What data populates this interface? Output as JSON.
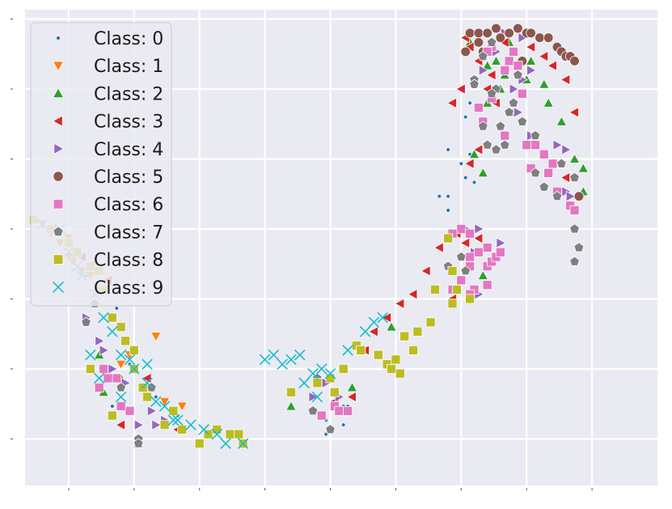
{
  "chart_data": {
    "type": "scatter",
    "title": "",
    "xlabel": "",
    "ylabel": "",
    "xlim": [
      -80,
      65
    ],
    "ylim": [
      -60,
      42
    ],
    "grid": true,
    "legend_position": "top-left",
    "colors": [
      "#1f77b4",
      "#ff7f0e",
      "#2ca02c",
      "#d62728",
      "#9467bd",
      "#8c564b",
      "#e377c2",
      "#7f7f7f",
      "#bcbd22",
      "#17becf"
    ],
    "markers": [
      "point",
      "triangle-down",
      "triangle-up",
      "triangle-left",
      "triangle-right",
      "circle",
      "square",
      "pentagon",
      "square",
      "x"
    ],
    "series": [
      {
        "name": "Class: 0",
        "points": [
          [
            22,
            22
          ],
          [
            21,
            19
          ],
          [
            17,
            12
          ],
          [
            20,
            9
          ],
          [
            22,
            11
          ],
          [
            17,
            2
          ],
          [
            23,
            5
          ],
          [
            -11,
            -46
          ],
          [
            -7,
            -47
          ],
          [
            -11,
            -49
          ],
          [
            -7,
            -43
          ],
          [
            -6,
            -43
          ],
          [
            21,
            6
          ],
          [
            15,
            2
          ],
          [
            17,
            -1
          ],
          [
            -45,
            -45
          ],
          [
            -50,
            -41
          ],
          [
            -56,
            -34
          ],
          [
            -66,
            -15
          ],
          [
            -59,
            -22
          ],
          [
            -60,
            -43
          ],
          [
            -44,
            -48
          ]
        ]
      },
      {
        "name": "Class: 1",
        "points": [
          [
            -76,
            -4
          ],
          [
            -74,
            -6
          ],
          [
            -72,
            -8
          ],
          [
            -70,
            -7
          ],
          [
            -69,
            -12
          ],
          [
            -67,
            -14
          ],
          [
            -65,
            -15
          ],
          [
            -63,
            -18
          ],
          [
            -52,
            -39
          ],
          [
            -48,
            -42
          ],
          [
            -44,
            -43
          ],
          [
            -56,
            -32
          ],
          [
            -58,
            -34
          ],
          [
            -50,
            -28
          ],
          [
            -70,
            -11
          ]
        ]
      },
      {
        "name": "Class: 2",
        "points": [
          [
            30,
            28
          ],
          [
            35,
            27
          ],
          [
            40,
            22
          ],
          [
            43,
            18
          ],
          [
            46,
            10
          ],
          [
            48,
            8
          ],
          [
            48,
            3
          ],
          [
            46,
            -1
          ],
          [
            39,
            26
          ],
          [
            32,
            20
          ],
          [
            26,
            22
          ],
          [
            28,
            31
          ],
          [
            22,
            35
          ],
          [
            31,
            35
          ],
          [
            36,
            31
          ],
          [
            26,
            30
          ],
          [
            29,
            25
          ],
          [
            23,
            11
          ],
          [
            25,
            7
          ],
          [
            25,
            -15
          ],
          [
            -19,
            -43
          ],
          [
            -5,
            -39
          ],
          [
            4,
            -26
          ],
          [
            -54,
            -51
          ],
          [
            -63,
            -32
          ],
          [
            -62,
            -40
          ],
          [
            -58,
            -37
          ]
        ]
      },
      {
        "name": "Class: 3",
        "points": [
          [
            21,
            36
          ],
          [
            22,
            34
          ],
          [
            24,
            31
          ],
          [
            27,
            28
          ],
          [
            26,
            25
          ],
          [
            28,
            22
          ],
          [
            36,
            34
          ],
          [
            39,
            32
          ],
          [
            41,
            30
          ],
          [
            44,
            27
          ],
          [
            46,
            20
          ],
          [
            44,
            6
          ],
          [
            20,
            25
          ],
          [
            18,
            22
          ],
          [
            19,
            -6
          ],
          [
            21,
            -8
          ],
          [
            20,
            -16
          ],
          [
            18,
            -20
          ],
          [
            24,
            -7
          ],
          [
            15,
            -9
          ],
          [
            12,
            -14
          ],
          [
            9,
            -19
          ],
          [
            6,
            -21
          ],
          [
            3,
            -24
          ],
          [
            0,
            -27
          ],
          [
            -2,
            -31
          ],
          [
            24,
            12
          ],
          [
            22,
            9
          ],
          [
            30,
            35
          ],
          [
            -9,
            -42
          ],
          [
            -5,
            -41
          ],
          [
            -58,
            -47
          ],
          [
            -52,
            -37
          ],
          [
            -45,
            -48
          ],
          [
            -61,
            -16
          ],
          [
            -67,
            -11
          ]
        ]
      },
      {
        "name": "Class: 4",
        "points": [
          [
            30,
            37
          ],
          [
            34,
            36
          ],
          [
            28,
            33
          ],
          [
            25,
            29
          ],
          [
            36,
            29
          ],
          [
            34,
            27
          ],
          [
            32,
            25
          ],
          [
            33,
            20
          ],
          [
            36,
            15
          ],
          [
            42,
            13
          ],
          [
            44,
            12
          ],
          [
            44,
            3
          ],
          [
            45,
            2
          ],
          [
            24,
            -5
          ],
          [
            21,
            -5
          ],
          [
            29,
            -8
          ],
          [
            23,
            -10
          ],
          [
            24,
            -19
          ],
          [
            -14,
            -41
          ],
          [
            -11,
            -38
          ],
          [
            -8,
            -41
          ],
          [
            -54,
            -47
          ],
          [
            -50,
            -47
          ],
          [
            -60,
            -35
          ],
          [
            -63,
            -29
          ],
          [
            -62,
            -31
          ],
          [
            -51,
            -44
          ],
          [
            -48,
            -46
          ],
          [
            -57,
            -38
          ],
          [
            -66,
            -24
          ]
        ]
      },
      {
        "name": "Class: 5",
        "points": [
          [
            22,
            37
          ],
          [
            24,
            37
          ],
          [
            26,
            37
          ],
          [
            28,
            38
          ],
          [
            31,
            37
          ],
          [
            33,
            38
          ],
          [
            35,
            37
          ],
          [
            36,
            37
          ],
          [
            38,
            36
          ],
          [
            40,
            36
          ],
          [
            42,
            34
          ],
          [
            43,
            33
          ],
          [
            44,
            32
          ],
          [
            45,
            32
          ],
          [
            46,
            31
          ],
          [
            21,
            33
          ],
          [
            24,
            35
          ],
          [
            25,
            33
          ],
          [
            29,
            36
          ],
          [
            32,
            33
          ],
          [
            34,
            31
          ],
          [
            47,
            2
          ]
        ]
      },
      {
        "name": "Class: 6",
        "points": [
          [
            27,
            34
          ],
          [
            26,
            33
          ],
          [
            31,
            31
          ],
          [
            30,
            29
          ],
          [
            32,
            33
          ],
          [
            33,
            30
          ],
          [
            34,
            24
          ],
          [
            27,
            23
          ],
          [
            24,
            21
          ],
          [
            25,
            18
          ],
          [
            30,
            15
          ],
          [
            35,
            13
          ],
          [
            37,
            13
          ],
          [
            39,
            11
          ],
          [
            36,
            8
          ],
          [
            41,
            9
          ],
          [
            40,
            7
          ],
          [
            42,
            3
          ],
          [
            45,
            0
          ],
          [
            46,
            -1
          ],
          [
            20,
            -5
          ],
          [
            18,
            -6
          ],
          [
            22,
            -6
          ],
          [
            26,
            -9
          ],
          [
            24,
            -10
          ],
          [
            26,
            -13
          ],
          [
            27,
            -12
          ],
          [
            28,
            -11
          ],
          [
            29,
            -10
          ],
          [
            22,
            -11
          ],
          [
            22,
            -13
          ],
          [
            20,
            -16
          ],
          [
            18,
            -18
          ],
          [
            23,
            -18
          ],
          [
            26,
            -17
          ],
          [
            22,
            -19
          ],
          [
            -9,
            -43
          ],
          [
            -8,
            -44
          ],
          [
            -6,
            -44
          ],
          [
            -12,
            -45
          ],
          [
            -56,
            -44
          ],
          [
            -58,
            -43
          ],
          [
            -59,
            -37
          ],
          [
            -62,
            -35
          ],
          [
            -61,
            -37
          ],
          [
            -63,
            -39
          ]
        ]
      },
      {
        "name": "Class: 7",
        "points": [
          [
            27,
            35
          ],
          [
            25,
            32
          ],
          [
            23,
            27
          ],
          [
            23,
            26
          ],
          [
            28,
            25
          ],
          [
            27,
            24
          ],
          [
            33,
            28
          ],
          [
            32,
            22
          ],
          [
            31,
            20
          ],
          [
            34,
            18
          ],
          [
            29,
            17
          ],
          [
            25,
            17
          ],
          [
            26,
            13
          ],
          [
            30,
            13
          ],
          [
            39,
            4
          ],
          [
            42,
            2
          ],
          [
            37,
            7
          ],
          [
            43,
            9
          ],
          [
            46,
            6
          ],
          [
            46,
            -5
          ],
          [
            47,
            -9
          ],
          [
            46,
            -12
          ],
          [
            37,
            15
          ],
          [
            28,
            12
          ],
          [
            20,
            -11
          ],
          [
            21,
            -14
          ],
          [
            17,
            -13
          ],
          [
            -10,
            -48
          ],
          [
            -14,
            -44
          ],
          [
            -13,
            -37
          ],
          [
            -51,
            -39
          ],
          [
            -54,
            -50
          ],
          [
            -54,
            -51
          ],
          [
            -58,
            -39
          ],
          [
            -64,
            -21
          ],
          [
            -66,
            -25
          ]
        ]
      },
      {
        "name": "Class: 8",
        "points": [
          [
            -78,
            -3
          ],
          [
            -74,
            -5
          ],
          [
            -70,
            -8
          ],
          [
            -68,
            -10
          ],
          [
            -65,
            -13
          ],
          [
            -63,
            -14
          ],
          [
            -62,
            -18
          ],
          [
            -60,
            -24
          ],
          [
            -58,
            -26
          ],
          [
            -57,
            -29
          ],
          [
            -55,
            -31
          ],
          [
            -55,
            -35
          ],
          [
            -53,
            -39
          ],
          [
            -52,
            -41
          ],
          [
            -48,
            -47
          ],
          [
            -46,
            -44
          ],
          [
            -44,
            -48
          ],
          [
            -40,
            -51
          ],
          [
            -38,
            -49
          ],
          [
            -36,
            -48
          ],
          [
            -33,
            -49
          ],
          [
            -31,
            -49
          ],
          [
            -30,
            -51
          ],
          [
            -13,
            -38
          ],
          [
            -7,
            -35
          ],
          [
            -4,
            -30
          ],
          [
            -3,
            -31
          ],
          [
            1,
            -32
          ],
          [
            3,
            -34
          ],
          [
            5,
            -33
          ],
          [
            4,
            -35
          ],
          [
            6,
            -36
          ],
          [
            7,
            -28
          ],
          [
            9,
            -31
          ],
          [
            10,
            -27
          ],
          [
            13,
            -25
          ],
          [
            14,
            -18
          ],
          [
            18,
            -21
          ],
          [
            19,
            -18
          ],
          [
            22,
            -20
          ],
          [
            18,
            -14
          ],
          [
            17,
            -7
          ],
          [
            -10,
            -37
          ],
          [
            -9,
            -40
          ],
          [
            -19,
            -40
          ],
          [
            -65,
            -35
          ],
          [
            -60,
            -45
          ]
        ]
      },
      {
        "name": "Class: 9",
        "points": [
          [
            -76,
            -4
          ],
          [
            -72,
            -5
          ],
          [
            -70,
            -10
          ],
          [
            -68,
            -13
          ],
          [
            -67,
            -15
          ],
          [
            -64,
            -19
          ],
          [
            -62,
            -24
          ],
          [
            -60,
            -27
          ],
          [
            -58,
            -32
          ],
          [
            -56,
            -33
          ],
          [
            -55,
            -35
          ],
          [
            -52,
            -38
          ],
          [
            -50,
            -42
          ],
          [
            -48,
            -43
          ],
          [
            -46,
            -46
          ],
          [
            -42,
            -47
          ],
          [
            -39,
            -48
          ],
          [
            -36,
            -49
          ],
          [
            -34,
            -51
          ],
          [
            -30,
            -51
          ],
          [
            -25,
            -33
          ],
          [
            -23,
            -32
          ],
          [
            -21,
            -34
          ],
          [
            -19,
            -33
          ],
          [
            -17,
            -32
          ],
          [
            -16,
            -38
          ],
          [
            -14,
            -36
          ],
          [
            -12,
            -35
          ],
          [
            -10,
            -36
          ],
          [
            -6,
            -31
          ],
          [
            -2,
            -27
          ],
          [
            0,
            -25
          ],
          [
            2,
            -24
          ],
          [
            -13,
            -41
          ],
          [
            -63,
            -37
          ],
          [
            -65,
            -32
          ],
          [
            -52,
            -34
          ],
          [
            -58,
            -41
          ],
          [
            -45,
            -46
          ]
        ]
      }
    ]
  }
}
